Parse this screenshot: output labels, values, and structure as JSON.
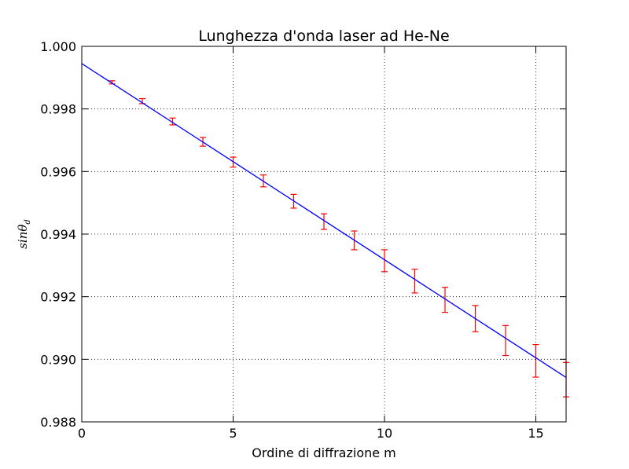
{
  "chart_data": {
    "type": "scatter",
    "title": "Lunghezza d'onda laser ad He-Ne",
    "xlabel": "Ordine di diffrazione m",
    "ylabel": "sin",
    "ylabel_symbol": "θ",
    "ylabel_subscript": "d",
    "xlim": [
      0,
      16
    ],
    "ylim": [
      0.988,
      1.0
    ],
    "xticks": [
      0,
      5,
      10,
      15
    ],
    "xtick_labels": [
      "0",
      "5",
      "10",
      "15"
    ],
    "yticks": [
      0.988,
      0.99,
      0.992,
      0.994,
      0.996,
      0.998,
      1.0
    ],
    "ytick_labels": [
      "0.988",
      "0.990",
      "0.992",
      "0.994",
      "0.996",
      "0.998",
      "1.000"
    ],
    "grid": true,
    "series": [
      {
        "kind": "errorbar",
        "color": "#ff0000",
        "x": [
          1,
          2,
          3,
          4,
          5,
          6,
          7,
          8,
          9,
          10,
          11,
          12,
          13,
          14,
          15,
          16
        ],
        "y": [
          0.99885,
          0.99825,
          0.9976,
          0.99695,
          0.9963,
          0.9957,
          0.99505,
          0.9944,
          0.9938,
          0.99315,
          0.9925,
          0.9919,
          0.9913,
          0.9906,
          0.98995,
          0.98935
        ],
        "yerr": [
          5e-05,
          8e-05,
          0.00011,
          0.00014,
          0.00016,
          0.00019,
          0.00022,
          0.00025,
          0.0003,
          0.00035,
          0.00038,
          0.0004,
          0.00042,
          0.00048,
          0.00052,
          0.00055
        ]
      },
      {
        "kind": "line",
        "color": "#0000ff",
        "x": [
          0,
          16
        ],
        "y": [
          0.99945,
          0.98942
        ]
      }
    ]
  }
}
